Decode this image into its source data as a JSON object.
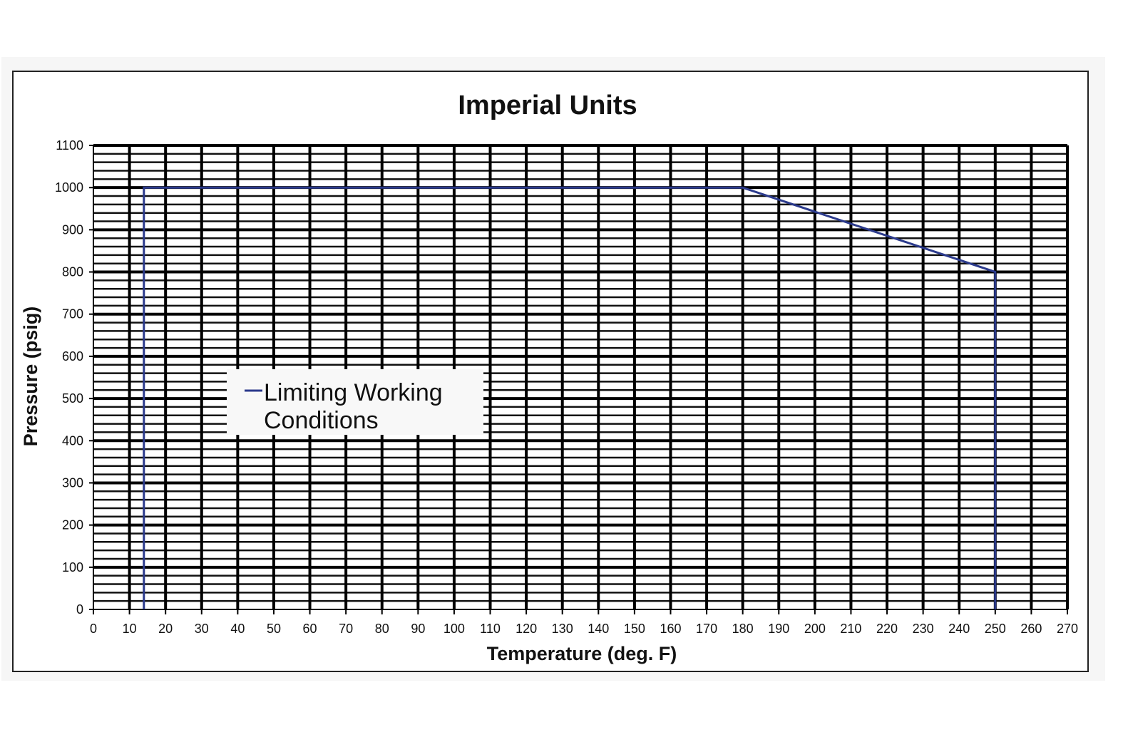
{
  "chart_data": {
    "type": "line",
    "title": "Imperial Units",
    "xlabel": "Temperature (deg. F)",
    "ylabel": "Pressure (psig)",
    "xlim": [
      0,
      270
    ],
    "ylim": [
      0,
      1100
    ],
    "x_ticks": [
      0,
      10,
      20,
      30,
      40,
      50,
      60,
      70,
      80,
      90,
      100,
      110,
      120,
      130,
      140,
      150,
      160,
      170,
      180,
      190,
      200,
      210,
      220,
      230,
      240,
      250,
      260,
      270
    ],
    "y_ticks": [
      0,
      100,
      200,
      300,
      400,
      500,
      600,
      700,
      800,
      900,
      1000,
      1100
    ],
    "grid": true,
    "legend_position": "center-left",
    "series": [
      {
        "name": "Limiting Working Conditions",
        "color": "#2b3a8c",
        "x": [
          14,
          14,
          180,
          250,
          250
        ],
        "y": [
          0,
          1000,
          1000,
          800,
          0
        ]
      }
    ]
  }
}
